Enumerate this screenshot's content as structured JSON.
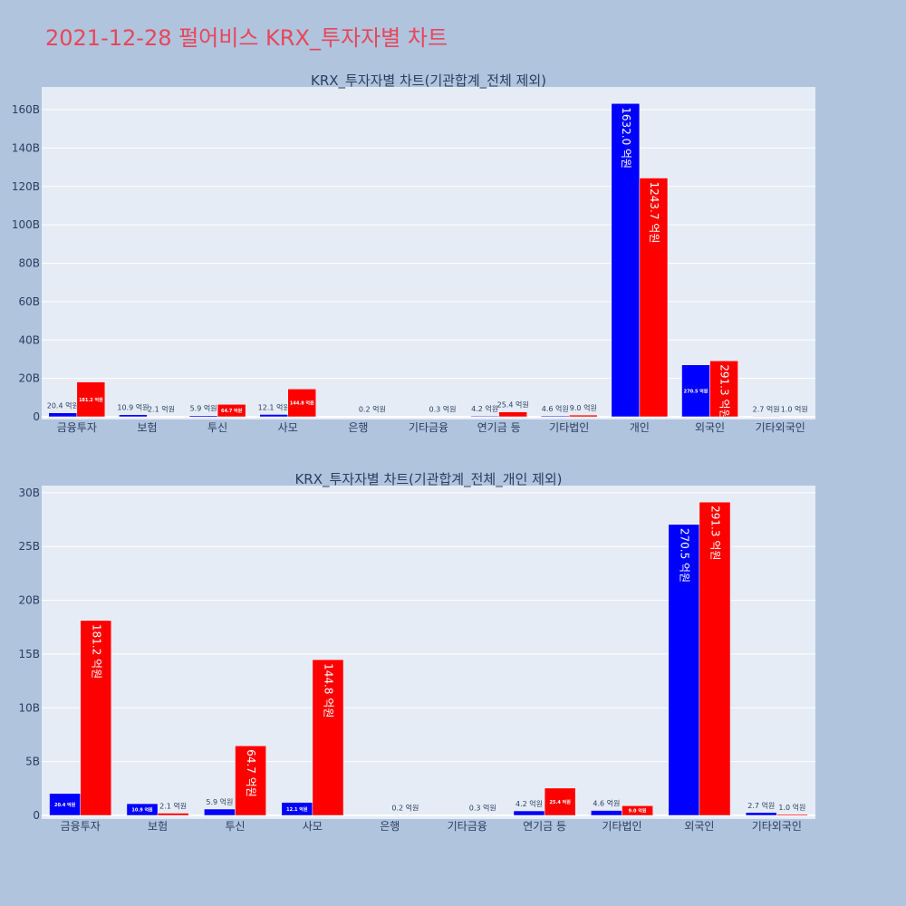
{
  "page": {
    "title": "2021-12-28 펄어비스 KRX_투자자별 차트"
  },
  "chart_data": [
    {
      "type": "bar",
      "title": "KRX_투자자별 차트(기관합계_전체 제외)",
      "categories": [
        "금융투자",
        "보험",
        "투신",
        "사모",
        "은행",
        "기타금융",
        "연기금 등",
        "기타법인",
        "개인",
        "외국인",
        "기타외국인"
      ],
      "series": [
        {
          "color": "#0000ff",
          "values": [
            2.04,
            1.09,
            0.59,
            1.21,
            null,
            null,
            0.42,
            0.46,
            163.2,
            27.05,
            0.27
          ]
        },
        {
          "color": "#ff0000",
          "values": [
            18.12,
            0.21,
            6.47,
            14.48,
            0.02,
            0.03,
            2.54,
            0.9,
            124.37,
            29.13,
            0.1
          ]
        }
      ],
      "labels": [
        [
          "20.4 억원",
          "10.9 억원",
          "5.9 억원",
          "12.1 억원",
          null,
          null,
          "4.2 억원",
          "4.6 억원",
          "1632.0 억원",
          "270.5 억원",
          "2.7 억원"
        ],
        [
          "181.2 억원",
          "2.1 억원",
          "64.7 억원",
          "144.8 억원",
          "0.2 억원",
          "0.3 억원",
          "25.4 억원",
          "9.0 억원",
          "1243.7 억원",
          "291.3 억원",
          "1.0 억원"
        ]
      ],
      "yticks": [
        "0",
        "20B",
        "40B",
        "60B",
        "80B",
        "100B",
        "120B",
        "140B",
        "160B"
      ],
      "ytick_values": [
        0,
        20,
        40,
        60,
        80,
        100,
        120,
        140,
        160
      ],
      "ylim": [
        0,
        171.8
      ],
      "grid": true
    },
    {
      "type": "bar",
      "title": "KRX_투자자별 차트(기관합계_전체_개인 제외)",
      "categories": [
        "금융투자",
        "보험",
        "투신",
        "사모",
        "은행",
        "기타금융",
        "연기금 등",
        "기타법인",
        "외국인",
        "기타외국인"
      ],
      "series": [
        {
          "color": "#0000ff",
          "values": [
            2.04,
            1.09,
            0.59,
            1.21,
            null,
            null,
            0.42,
            0.46,
            27.05,
            0.27
          ]
        },
        {
          "color": "#ff0000",
          "values": [
            18.12,
            0.21,
            6.47,
            14.48,
            0.02,
            0.03,
            2.54,
            0.9,
            29.13,
            0.1
          ]
        }
      ],
      "labels": [
        [
          "20.4 억원",
          "10.9 억원",
          "5.9 억원",
          "12.1 억원",
          null,
          null,
          "4.2 억원",
          "4.6 억원",
          "270.5 억원",
          "2.7 억원"
        ],
        [
          "181.2 억원",
          "2.1 억원",
          "64.7 억원",
          "144.8 억원",
          "0.2 억원",
          "0.3 억원",
          "25.4 억원",
          "9.0 억원",
          "291.3 억원",
          "1.0 억원"
        ]
      ],
      "yticks": [
        "0",
        "5B",
        "10B",
        "15B",
        "20B",
        "25B",
        "30B"
      ],
      "ytick_values": [
        0,
        5,
        10,
        15,
        20,
        25,
        30
      ],
      "ylim": [
        0,
        30.66
      ],
      "grid": true
    }
  ]
}
